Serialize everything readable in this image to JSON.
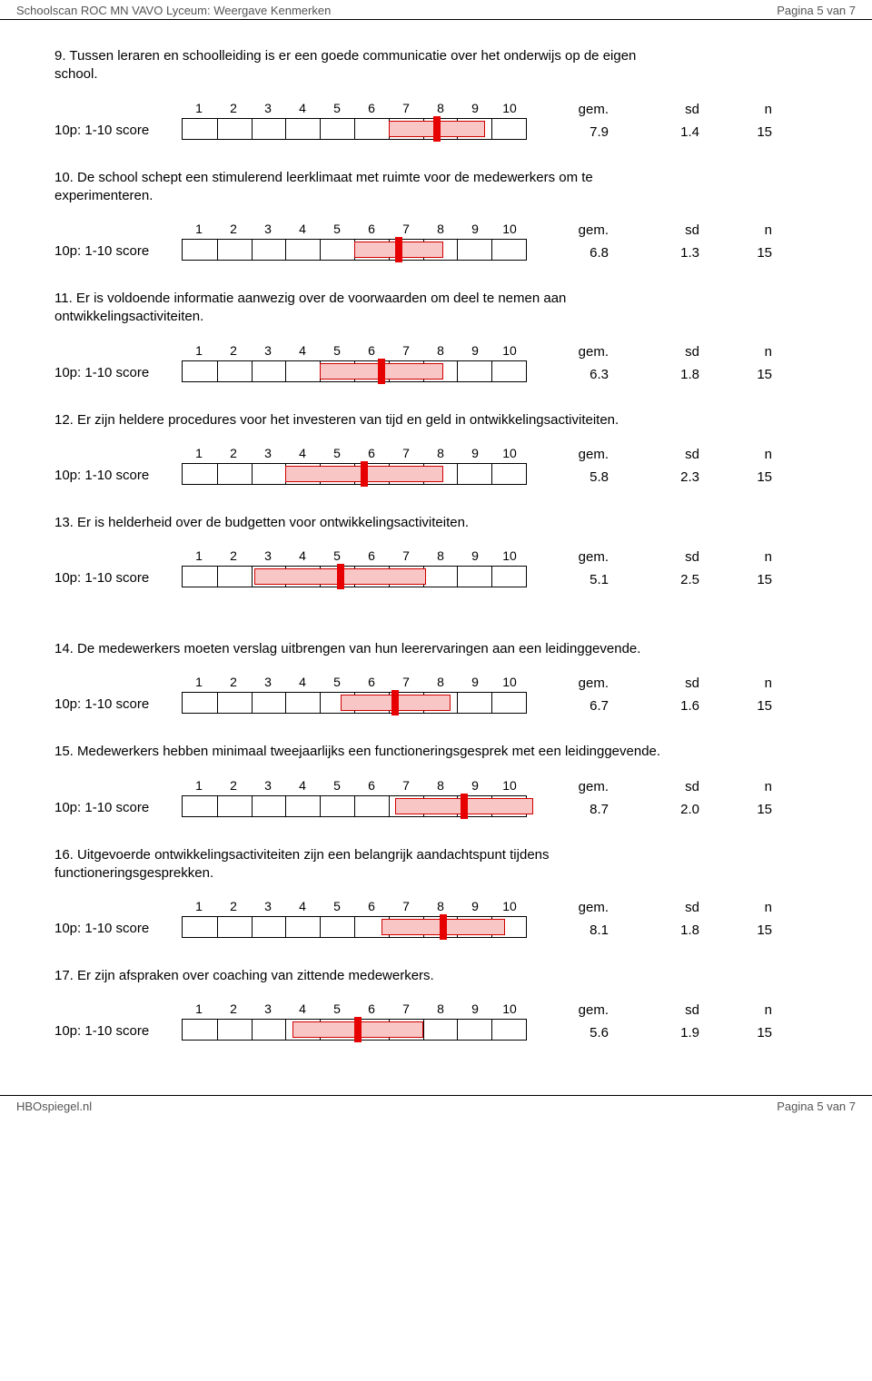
{
  "page": {
    "header_left": "Schoolscan ROC MN VAVO Lyceum: Weergave Kenmerken",
    "header_right": "Pagina 5 van 7",
    "footer_left": "HBOspiegel.nl",
    "footer_right": "Pagina 5 van 7"
  },
  "chart": {
    "row_label": "10p: 1-10 score",
    "scale_labels": [
      "1",
      "2",
      "3",
      "4",
      "5",
      "6",
      "7",
      "8",
      "9",
      "10"
    ],
    "col_gem_label": "gem.",
    "col_sd_label": "sd",
    "col_n_label": "n",
    "scale_min": 0.5,
    "scale_max": 10.5,
    "tick_count": 9,
    "colors": {
      "box_fill": "#f9c6c6",
      "box_border": "#d00000",
      "mean_marker": "#e60000",
      "axis": "#000000",
      "background": "#ffffff"
    }
  },
  "questions": [
    {
      "num": "9.",
      "text": "Tussen leraren en schoolleiding is er een goede communicatie over het onderwijs op de eigen school.",
      "gem": "7.9",
      "sd": "1.4",
      "n": "15",
      "mean": 7.9,
      "sdv": 1.4
    },
    {
      "num": "10.",
      "text": "De school schept een stimulerend leerklimaat met ruimte voor de medewerkers om te experimenteren.",
      "gem": "6.8",
      "sd": "1.3",
      "n": "15",
      "mean": 6.8,
      "sdv": 1.3
    },
    {
      "num": "11.",
      "text": "Er is voldoende informatie aanwezig over de voorwaarden om deel te nemen aan ontwikkelingsactiviteiten.",
      "gem": "6.3",
      "sd": "1.8",
      "n": "15",
      "mean": 6.3,
      "sdv": 1.8
    },
    {
      "num": "12.",
      "text": "Er zijn heldere procedures voor het investeren van tijd en geld in ontwikkelingsactiviteiten.",
      "gem": "5.8",
      "sd": "2.3",
      "n": "15",
      "mean": 5.8,
      "sdv": 2.3
    },
    {
      "num": "13.",
      "text": "Er is helderheid over de budgetten voor ontwikkelingsactiviteiten.",
      "gem": "5.1",
      "sd": "2.5",
      "n": "15",
      "mean": 5.1,
      "sdv": 2.5,
      "gap_after": true
    },
    {
      "num": "14.",
      "text": "De medewerkers moeten verslag uitbrengen van hun leerervaringen aan een leidinggevende.",
      "gem": "6.7",
      "sd": "1.6",
      "n": "15",
      "mean": 6.7,
      "sdv": 1.6
    },
    {
      "num": "15.",
      "text": "Medewerkers hebben minimaal tweejaarlijks een functioneringsgesprek met een leidinggevende.",
      "gem": "8.7",
      "sd": "2.0",
      "n": "15",
      "mean": 8.7,
      "sdv": 2.0
    },
    {
      "num": "16.",
      "text": "Uitgevoerde ontwikkelingsactiviteiten zijn een belangrijk aandachtspunt tijdens functioneringsgesprekken.",
      "gem": "8.1",
      "sd": "1.8",
      "n": "15",
      "mean": 8.1,
      "sdv": 1.8
    },
    {
      "num": "17.",
      "text": "Er zijn afspraken over coaching van zittende medewerkers.",
      "gem": "5.6",
      "sd": "1.9",
      "n": "15",
      "mean": 5.6,
      "sdv": 1.9
    }
  ]
}
